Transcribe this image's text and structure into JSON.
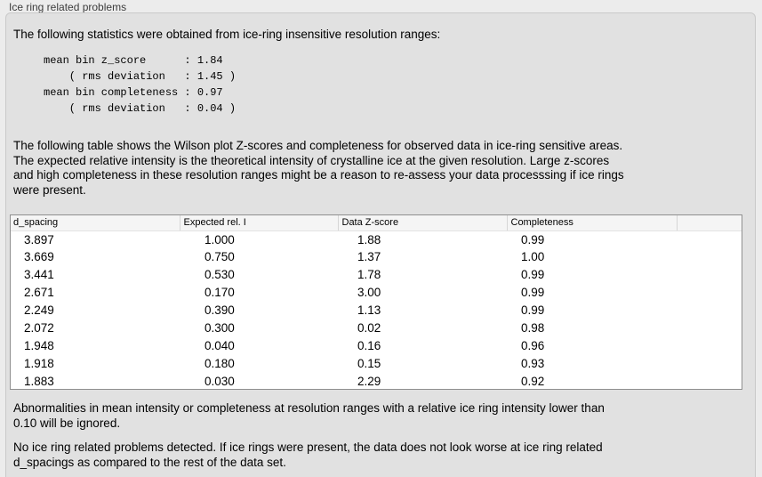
{
  "colors": {
    "page_bg": "#ececec",
    "panel_bg": "#e1e1e1",
    "panel_border": "#c9c9c9",
    "table_bg": "#ffffff",
    "table_border": "#8f8f8f",
    "header_bg": "#f5f5f5",
    "title_text": "#3d3d3d",
    "body_text": "#000000"
  },
  "panel": {
    "title": "Ice ring related problems"
  },
  "stats": {
    "intro": "The following statistics were obtained from ice-ring insensitive resolution ranges:",
    "block": "mean bin z_score      : 1.84\n    ( rms deviation   : 1.45 )\nmean bin completeness : 0.97\n    ( rms deviation   : 0.04 )"
  },
  "table_intro": "The following table shows the Wilson plot Z-scores and completeness for observed data in ice-ring sensitive areas.\nThe expected relative intensity is the theoretical intensity of crystalline ice at the given resolution. Large z-scores\nand high completeness in these resolution ranges might be a reason to re-assess your data processsing if ice rings\nwere present.",
  "table": {
    "headers": [
      "d_spacing",
      "Expected rel. I",
      "Data Z-score",
      "Completeness"
    ],
    "rows": [
      [
        "3.897",
        "1.000",
        "1.88",
        "0.99"
      ],
      [
        "3.669",
        "0.750",
        "1.37",
        "1.00"
      ],
      [
        "3.441",
        "0.530",
        "1.78",
        "0.99"
      ],
      [
        "2.671",
        "0.170",
        "3.00",
        "0.99"
      ],
      [
        "2.249",
        "0.390",
        "1.13",
        "0.99"
      ],
      [
        "2.072",
        "0.300",
        "0.02",
        "0.98"
      ],
      [
        "1.948",
        "0.040",
        "0.16",
        "0.96"
      ],
      [
        "1.918",
        "0.180",
        "0.15",
        "0.93"
      ],
      [
        "1.883",
        "0.030",
        "2.29",
        "0.92"
      ]
    ]
  },
  "notes": {
    "ignore": "Abnormalities in mean intensity or completeness at resolution ranges with a relative ice ring intensity lower than\n0.10 will be ignored.",
    "conclusion": "No ice ring related problems detected. If ice rings were present, the data does not look worse at ice ring related\nd_spacings as compared to the rest of the data set."
  }
}
